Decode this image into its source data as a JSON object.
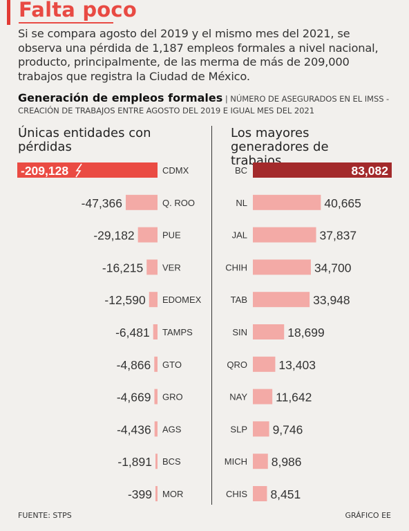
{
  "header": {
    "title": "Falta poco",
    "intro": "Si se compara agosto del 2019 y el mismo mes del 2021, se observa una pérdida de 1,187 empleos formales a nivel nacional, producto, principalmente, de las merma de más de 209,000 trabajos que registra la Ciudad de México."
  },
  "chart_header": {
    "title": "Generación de empleos formales",
    "separator": "|",
    "subtitle": "Número de asegurados en el IMSS - Creación de trabajos entre agosto del 2019 e igual mes del 2021"
  },
  "colors": {
    "highlight_loss": "#ea4b43",
    "highlight_gain": "#a32a2b",
    "bar": "#f3aaa6",
    "title": "#e84a43",
    "text": "#222222"
  },
  "chart_data": [
    {
      "type": "bar",
      "orientation": "horizontal",
      "title": "Únicas entidades con pérdidas",
      "categories": [
        "CDMX",
        "Q. ROO",
        "PUE",
        "VER",
        "EDOMEX",
        "TAMPS",
        "GTO",
        "GRO",
        "AGS",
        "BCS",
        "MOR"
      ],
      "labels": [
        "-209,128",
        "-47,366",
        "-29,182",
        "-16,215",
        "-12,590",
        "-6,481",
        "-4,866",
        "-4,669",
        "-4,436",
        "-1,891",
        "-399"
      ],
      "values": [
        -209128,
        -47366,
        -29182,
        -16215,
        -12590,
        -6481,
        -4866,
        -4669,
        -4436,
        -1891,
        -399
      ],
      "highlight_index": 0,
      "highlight_icon": "lightning-bolt-icon"
    },
    {
      "type": "bar",
      "orientation": "horizontal",
      "title": "Los mayores generadores de trabajos",
      "categories": [
        "BC",
        "NL",
        "JAL",
        "CHIH",
        "TAB",
        "SIN",
        "QRO",
        "NAY",
        "SLP",
        "MICH",
        "CHIS"
      ],
      "labels": [
        "83,082",
        "40,665",
        "37,837",
        "34,700",
        "33,948",
        "18,699",
        "13,403",
        "11,642",
        "9,746",
        "8,986",
        "8,451"
      ],
      "values": [
        83082,
        40665,
        37837,
        34700,
        33948,
        18699,
        13403,
        11642,
        9746,
        8986,
        8451
      ],
      "highlight_index": 0
    }
  ],
  "footer": {
    "source": "Fuente: STPS",
    "credit": "Gráfico EE"
  }
}
